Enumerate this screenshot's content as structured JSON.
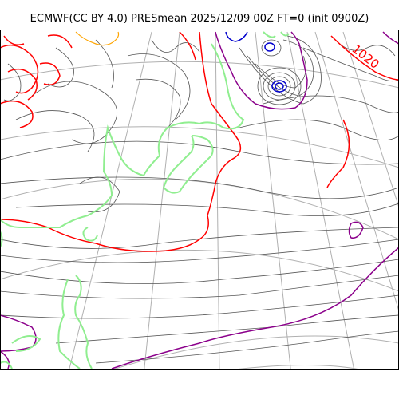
{
  "title": "ECMWF(CC BY 4.0) PRESmean 2025/12/09 00Z FT=0 (init 0900Z)",
  "isobar_labels": [
    "1020"
  ],
  "colors": {
    "background": "#ffffff",
    "frame": "#000000",
    "graticule": "#b0b0b0",
    "coastline": "#90ee90",
    "isobar_minor": "#555555",
    "isobar_1020": "#ff0000",
    "isobar_1012": "#8b008b",
    "isobar_low": "#0000cd",
    "isobar_high": "#ffa500"
  }
}
